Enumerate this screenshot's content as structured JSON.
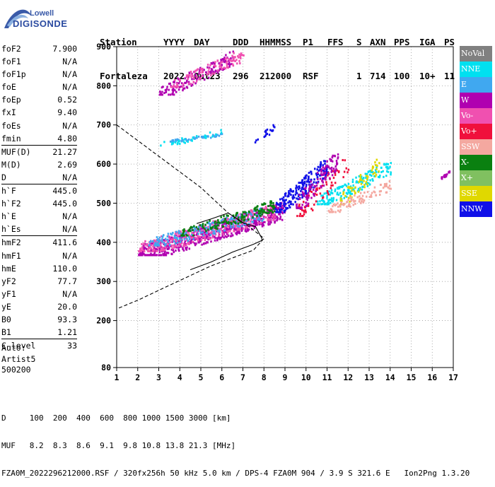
{
  "logo": {
    "brand": "Lowell",
    "name": "DIGISONDE"
  },
  "header": {
    "line1": [
      "Station",
      "YYYY",
      "DAY",
      "DDD",
      "HHMMSS",
      "P1",
      "FFS",
      "S",
      "AXN",
      "PPS",
      "IGA",
      "PS"
    ],
    "line2": [
      "Fortaleza",
      "2022",
      "Out23",
      "296",
      "212000",
      "RSF",
      "",
      "1",
      "714",
      "100",
      "10+",
      "11"
    ]
  },
  "parameters": [
    {
      "label": "foF2",
      "value": "7.900"
    },
    {
      "label": "foF1",
      "value": "N/A"
    },
    {
      "label": "foF1p",
      "value": "N/A"
    },
    {
      "label": "foE",
      "value": "N/A"
    },
    {
      "label": "foEp",
      "value": "0.52"
    },
    {
      "label": "fxI",
      "value": "9.40"
    },
    {
      "label": "foEs",
      "value": "N/A"
    },
    {
      "label": "fmin",
      "value": "4.80"
    },
    {
      "sep": true
    },
    {
      "label": "MUF(D)",
      "value": "21.27"
    },
    {
      "label": "M(D)",
      "value": "2.69"
    },
    {
      "label": "D",
      "value": "N/A"
    },
    {
      "sep": true
    },
    {
      "label": "h`F",
      "value": "445.0"
    },
    {
      "label": "h`F2",
      "value": "445.0"
    },
    {
      "label": "h`E",
      "value": "N/A"
    },
    {
      "label": "h`Es",
      "value": "N/A"
    },
    {
      "sep": true
    },
    {
      "label": "hmF2",
      "value": "411.6"
    },
    {
      "label": "hmF1",
      "value": "N/A"
    },
    {
      "label": "hmE",
      "value": "110.0"
    },
    {
      "label": "yF2",
      "value": "77.7"
    },
    {
      "label": "yF1",
      "value": "N/A"
    },
    {
      "label": "yE",
      "value": "20.0"
    },
    {
      "label": "B0",
      "value": "93.3"
    },
    {
      "label": "B1",
      "value": "1.21"
    },
    {
      "sep": true
    },
    {
      "label": "C-level",
      "value": "33"
    }
  ],
  "autoscale": {
    "line1": "Auto:",
    "line2": "Artist5",
    "line3": "500200"
  },
  "legend": [
    {
      "label": "NoVal",
      "color": "#808080"
    },
    {
      "label": "NNE",
      "color": "#00e0f0"
    },
    {
      "label": "E",
      "color": "#40a8f0"
    },
    {
      "label": "W",
      "color": "#b000b0"
    },
    {
      "label": "Vo-",
      "color": "#f050b0"
    },
    {
      "label": "Vo+",
      "color": "#f0103c"
    },
    {
      "label": "SSW",
      "color": "#f4a8a0"
    },
    {
      "label": "X-",
      "color": "#0a8010"
    },
    {
      "label": "X+",
      "color": "#80c060"
    },
    {
      "label": "SSE",
      "color": "#e0d800"
    },
    {
      "label": "NNW",
      "color": "#1010e8"
    }
  ],
  "footer": {
    "line1": "D     100  200  400  600  800 1000 1500 3000 [km]",
    "line2": "MUF   8.2  8.3  8.6  9.1  9.8 10.8 13.8 21.3 [MHz]",
    "line3": "FZA0M_2022296212000.RSF / 320fx256h 50 kHz 5.0 km / DPS-4 FZA0M 904 / 3.9 S 321.6 E   Ion2Png 1.3.20"
  },
  "chart_data": {
    "type": "scatter",
    "xlim": [
      1,
      17
    ],
    "ylim": [
      80,
      900
    ],
    "x_ticks": [
      1,
      2,
      3,
      4,
      5,
      6,
      7,
      8,
      9,
      10,
      11,
      12,
      13,
      14,
      15,
      16,
      17
    ],
    "y_ticks": [
      80,
      200,
      300,
      400,
      500,
      600,
      700,
      800,
      900
    ],
    "grid": "dotted",
    "curves": {
      "dashed": [
        [
          1,
          700
        ],
        [
          3,
          620
        ],
        [
          5,
          540
        ],
        [
          6.3,
          475
        ],
        [
          7.3,
          440
        ],
        [
          8,
          410
        ],
        [
          7.5,
          380
        ],
        [
          5.5,
          340
        ],
        [
          3.5,
          290
        ],
        [
          2,
          252
        ],
        [
          1,
          230
        ]
      ],
      "solid": [
        [
          4.5,
          330
        ],
        [
          5.5,
          350
        ],
        [
          6.5,
          375
        ],
        [
          7.5,
          395
        ],
        [
          7.9,
          405
        ],
        [
          7.9,
          410
        ],
        [
          7.6,
          440
        ],
        [
          7,
          450
        ],
        [
          6.3,
          475
        ],
        [
          5.5,
          460
        ],
        [
          4.8,
          448
        ]
      ]
    },
    "echo_regions": [
      {
        "color": "#b000b0",
        "x": [
          2,
          9
        ],
        "y": [
          370,
          505
        ],
        "n": 650
      },
      {
        "color": "#f050b0",
        "x": [
          2,
          8.5
        ],
        "y": [
          380,
          500
        ],
        "n": 380
      },
      {
        "color": "#40a8f0",
        "x": [
          2.5,
          8
        ],
        "y": [
          395,
          490
        ],
        "n": 180
      },
      {
        "color": "#0a8010",
        "x": [
          4,
          8.5
        ],
        "y": [
          420,
          510
        ],
        "n": 160
      },
      {
        "color": "#1010e8",
        "x": [
          8.5,
          11
        ],
        "y": [
          480,
          620
        ],
        "n": 200
      },
      {
        "color": "#00e0f0",
        "x": [
          10.5,
          14
        ],
        "y": [
          500,
          610
        ],
        "n": 160
      },
      {
        "color": "#e0d800",
        "x": [
          11.5,
          13.5
        ],
        "y": [
          500,
          620
        ],
        "n": 60
      },
      {
        "color": "#f4a8a0",
        "x": [
          11,
          14
        ],
        "y": [
          480,
          560
        ],
        "n": 90
      },
      {
        "color": "#f0103c",
        "x": [
          9.5,
          12
        ],
        "y": [
          470,
          630
        ],
        "n": 70
      },
      {
        "color": "#b000b0",
        "x": [
          9.5,
          11.5
        ],
        "y": [
          490,
          640
        ],
        "n": 120
      },
      {
        "color": "#b000b0",
        "x": [
          3,
          6.5
        ],
        "y": [
          780,
          890
        ],
        "n": 150
      },
      {
        "color": "#f050b0",
        "x": [
          3.5,
          7
        ],
        "y": [
          800,
          895
        ],
        "n": 110
      },
      {
        "color": "#40a8f0",
        "x": [
          3.5,
          6
        ],
        "y": [
          660,
          680
        ],
        "n": 60
      },
      {
        "color": "#00e0f0",
        "x": [
          3,
          6
        ],
        "y": [
          650,
          690
        ],
        "n": 30
      },
      {
        "color": "#1010e8",
        "x": [
          7.5,
          8.5
        ],
        "y": [
          650,
          710
        ],
        "n": 20
      },
      {
        "color": "#b000b0",
        "x": [
          16.4,
          16.8
        ],
        "y": [
          565,
          585
        ],
        "n": 20
      }
    ]
  }
}
